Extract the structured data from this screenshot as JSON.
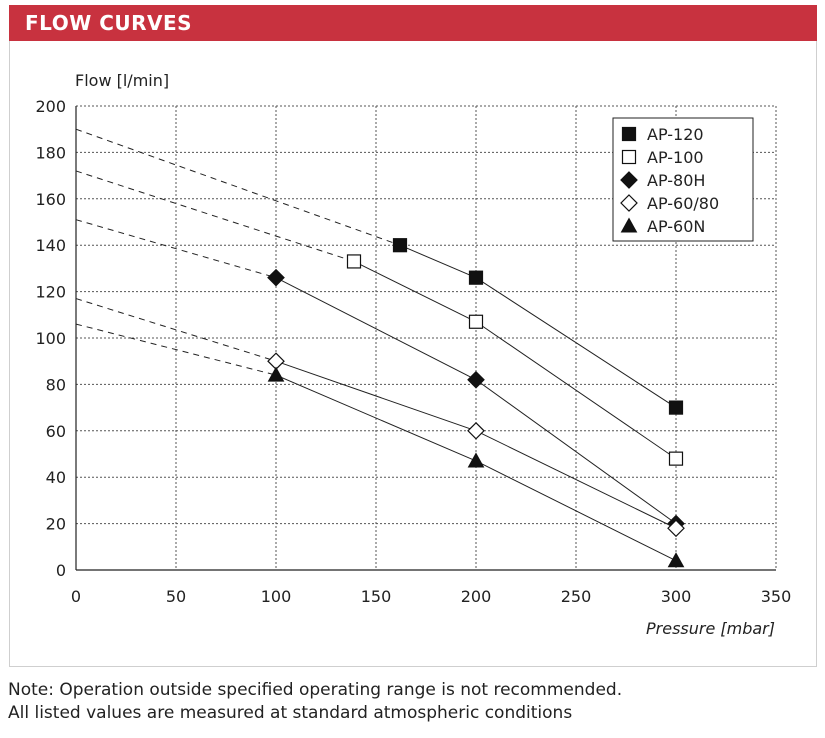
{
  "header": {
    "title": "FLOW CURVES"
  },
  "note": {
    "line1": "Note: Operation outside specified operating range is not recommended.",
    "line2": "All listed values are measured at standard atmospheric conditions"
  },
  "chart_data": {
    "type": "line",
    "title": "",
    "xlabel": "Pressure [mbar]",
    "ylabel": "Flow [l/min]",
    "xlim": [
      0,
      350
    ],
    "ylim": [
      0,
      200
    ],
    "xticks": [
      0,
      50,
      100,
      150,
      200,
      250,
      300,
      350
    ],
    "yticks": [
      0,
      20,
      40,
      60,
      80,
      100,
      120,
      140,
      160,
      180,
      200
    ],
    "grid": true,
    "legend_position": "top-right",
    "series": [
      {
        "name": "AP-120",
        "marker": "filled-square",
        "x": [
          162,
          200,
          300
        ],
        "y": [
          140,
          126,
          70
        ],
        "extrapolated_y0": 190
      },
      {
        "name": "AP-100",
        "marker": "open-square",
        "x": [
          139,
          200,
          300
        ],
        "y": [
          133,
          107,
          48
        ],
        "extrapolated_y0": 172
      },
      {
        "name": "AP-80H",
        "marker": "filled-diamond",
        "x": [
          100,
          200,
          300
        ],
        "y": [
          126,
          82,
          20
        ],
        "extrapolated_y0": 151
      },
      {
        "name": "AP-60/80",
        "marker": "open-diamond",
        "x": [
          100,
          200,
          300
        ],
        "y": [
          90,
          60,
          18
        ],
        "extrapolated_y0": 117
      },
      {
        "name": "AP-60N",
        "marker": "filled-triangle",
        "x": [
          100,
          200,
          300
        ],
        "y": [
          84,
          47,
          4
        ],
        "extrapolated_y0": 106
      }
    ]
  }
}
